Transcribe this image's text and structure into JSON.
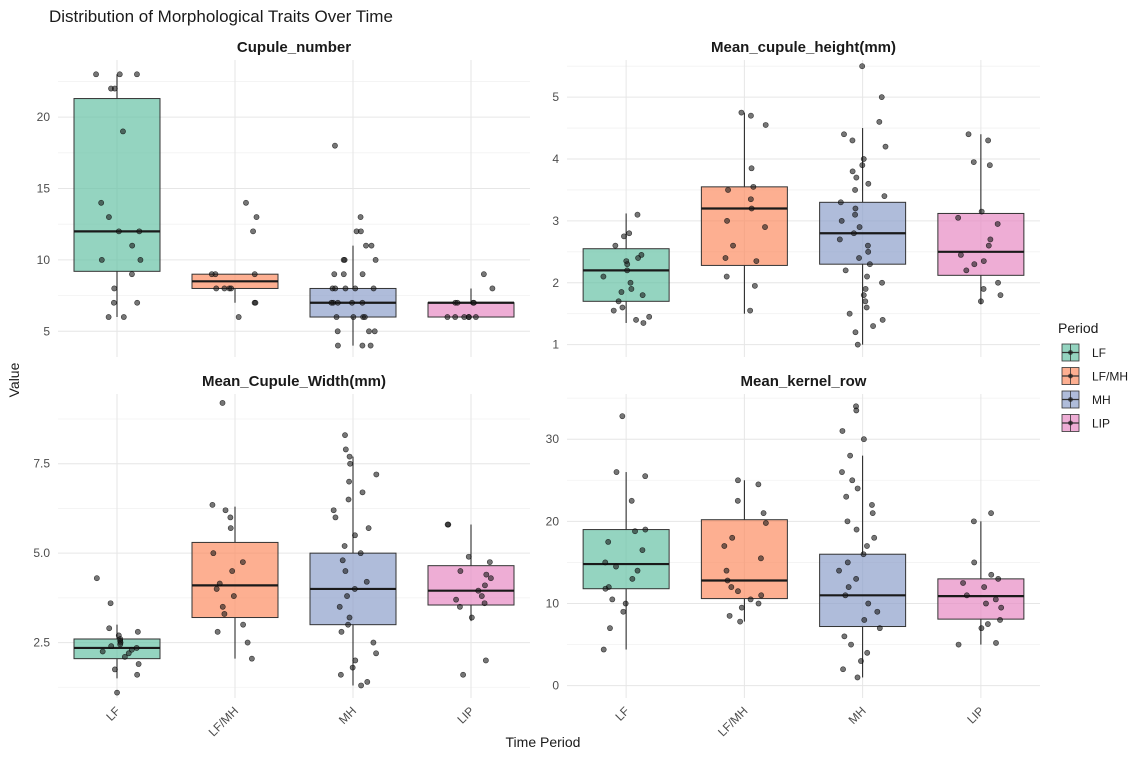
{
  "chart_data": {
    "type": "box",
    "title": "Distribution of Morphological Traits Over Time",
    "xlabel": "Time Period",
    "ylabel": "Value",
    "categories": [
      "LF",
      "LF/MH",
      "MH",
      "LIP"
    ],
    "legend": {
      "title": "Period",
      "placement": "right",
      "entries": [
        {
          "label": "LF",
          "color": "#66C2A5"
        },
        {
          "label": "LF/MH",
          "color": "#FC8D62"
        },
        {
          "label": "MH",
          "color": "#8DA0CB"
        },
        {
          "label": "LIP",
          "color": "#E78AC3"
        }
      ]
    },
    "grid": true,
    "panels": [
      {
        "title": "Cupule_number",
        "ylim": [
          3.2,
          24.0
        ],
        "yticks": [
          5,
          10,
          15,
          20
        ],
        "ytick_labels": [
          "5",
          "10",
          "15",
          "20"
        ],
        "boxes": [
          {
            "category": "LF",
            "whisker_low": 6,
            "q1": 9.2,
            "median": 12,
            "q3": 21.3,
            "whisker_high": 23,
            "points": [
              23,
              23,
              23,
              22,
              22,
              19,
              14,
              13,
              12,
              12,
              11,
              10,
              10,
              9,
              8,
              7,
              7,
              6,
              6
            ]
          },
          {
            "category": "LF/MH",
            "whisker_low": 7,
            "q1": 8,
            "median": 8.5,
            "q3": 9,
            "whisker_high": 9,
            "points": [
              14,
              13,
              12,
              9,
              9,
              9,
              8,
              8,
              8,
              8,
              7,
              7,
              6
            ]
          },
          {
            "category": "MH",
            "whisker_low": 4,
            "q1": 6,
            "median": 7,
            "q3": 8,
            "whisker_high": 11,
            "points": [
              18,
              13,
              12,
              12,
              11,
              11,
              10,
              10,
              10,
              9,
              9,
              9,
              8,
              8,
              8,
              8,
              8,
              7,
              7,
              7,
              7,
              7,
              6,
              6,
              6,
              6,
              5,
              5,
              5,
              4,
              4,
              4
            ]
          },
          {
            "category": "LIP",
            "whisker_low": 6,
            "q1": 6,
            "median": 7,
            "q3": 7,
            "whisker_high": 8,
            "points": [
              9,
              8,
              7,
              7,
              7,
              7,
              6,
              6,
              6,
              6,
              6,
              6
            ]
          }
        ]
      },
      {
        "title": "Mean_cupule_height(mm)",
        "ylim": [
          0.8,
          5.6
        ],
        "yticks": [
          1,
          2,
          3,
          4,
          5
        ],
        "ytick_labels": [
          "1",
          "2",
          "3",
          "4",
          "5"
        ],
        "boxes": [
          {
            "category": "LF",
            "whisker_low": 1.35,
            "q1": 1.7,
            "median": 2.2,
            "q3": 2.55,
            "whisker_high": 3.12,
            "points": [
              3.1,
              2.8,
              2.75,
              2.6,
              2.45,
              2.4,
              2.35,
              2.3,
              2.2,
              2.1,
              2.0,
              1.9,
              1.85,
              1.8,
              1.7,
              1.6,
              1.55,
              1.45,
              1.4,
              1.35
            ]
          },
          {
            "category": "LF/MH",
            "whisker_low": 1.5,
            "q1": 2.28,
            "median": 3.2,
            "q3": 3.55,
            "whisker_high": 4.75,
            "points": [
              4.75,
              4.7,
              4.55,
              3.85,
              3.55,
              3.5,
              3.35,
              3.2,
              3.0,
              2.9,
              2.6,
              2.4,
              2.35,
              2.1,
              1.95,
              1.55
            ]
          },
          {
            "category": "MH",
            "whisker_low": 1.0,
            "q1": 2.3,
            "median": 2.8,
            "q3": 3.3,
            "whisker_high": 4.5,
            "points": [
              5.5,
              5.0,
              4.6,
              4.4,
              4.3,
              4.2,
              4.0,
              3.9,
              3.8,
              3.7,
              3.6,
              3.5,
              3.4,
              3.3,
              3.2,
              3.1,
              3.0,
              2.9,
              2.8,
              2.7,
              2.6,
              2.5,
              2.4,
              2.3,
              2.2,
              2.1,
              2.0,
              1.9,
              1.8,
              1.7,
              1.6,
              1.5,
              1.4,
              1.3,
              1.2,
              1.0
            ]
          },
          {
            "category": "LIP",
            "whisker_low": 1.65,
            "q1": 2.12,
            "median": 2.5,
            "q3": 3.12,
            "whisker_high": 4.4,
            "points": [
              4.4,
              4.3,
              3.95,
              3.9,
              3.15,
              3.05,
              2.95,
              2.7,
              2.6,
              2.45,
              2.35,
              2.3,
              2.2,
              2.0,
              1.9,
              1.8,
              1.7
            ]
          }
        ]
      },
      {
        "title": "Mean_Cupule_Width(mm)",
        "ylim": [
          0.95,
          9.45
        ],
        "yticks": [
          2.5,
          5.0,
          7.5
        ],
        "ytick_labels": [
          "2.5",
          "5.0",
          "7.5"
        ],
        "boxes": [
          {
            "category": "LF",
            "whisker_low": 1.5,
            "q1": 2.05,
            "median": 2.35,
            "q3": 2.6,
            "whisker_high": 3.0,
            "points": [
              4.3,
              3.6,
              2.9,
              2.8,
              2.7,
              2.6,
              2.55,
              2.5,
              2.45,
              2.4,
              2.35,
              2.3,
              2.25,
              2.2,
              2.1,
              1.9,
              1.75,
              1.6,
              1.1
            ]
          },
          {
            "category": "LF/MH",
            "whisker_low": 2.05,
            "q1": 3.2,
            "median": 4.1,
            "q3": 5.3,
            "whisker_high": 6.3,
            "points": [
              9.2,
              6.35,
              6.2,
              6.0,
              5.7,
              5.0,
              4.75,
              4.5,
              4.15,
              4.0,
              3.8,
              3.5,
              3.3,
              3.0,
              2.8,
              2.5,
              2.05
            ]
          },
          {
            "category": "MH",
            "whisker_low": 1.3,
            "q1": 3.0,
            "median": 4.0,
            "q3": 5.0,
            "whisker_high": 7.7,
            "points": [
              8.3,
              7.9,
              7.7,
              7.5,
              7.2,
              7.0,
              6.7,
              6.5,
              6.2,
              6.0,
              5.7,
              5.5,
              5.2,
              5.0,
              4.8,
              4.5,
              4.2,
              4.0,
              3.8,
              3.5,
              3.2,
              3.0,
              2.8,
              2.5,
              2.2,
              2.0,
              1.8,
              1.6,
              1.4,
              1.3
            ]
          },
          {
            "category": "LIP",
            "whisker_low": 3.1,
            "q1": 3.55,
            "median": 3.95,
            "q3": 4.65,
            "whisker_high": 5.8,
            "points": [
              5.8,
              5.8,
              4.9,
              4.75,
              4.5,
              4.4,
              4.3,
              4.1,
              3.95,
              3.8,
              3.7,
              3.6,
              3.5,
              3.2,
              2.0,
              1.6
            ]
          }
        ]
      },
      {
        "title": "Mean_kernel_row",
        "ylim": [
          -1.5,
          35.5
        ],
        "yticks": [
          0,
          10,
          20,
          30
        ],
        "ytick_labels": [
          "0",
          "10",
          "20",
          "30"
        ],
        "boxes": [
          {
            "category": "LF",
            "whisker_low": 4.4,
            "q1": 11.8,
            "median": 14.8,
            "q3": 19.0,
            "whisker_high": 26.0,
            "points": [
              32.8,
              26.0,
              25.5,
              22.5,
              19.0,
              18.8,
              17.5,
              16.5,
              15.0,
              14.5,
              14.0,
              13.0,
              12.0,
              11.8,
              10.5,
              10.0,
              9.0,
              7.0,
              4.4
            ]
          },
          {
            "category": "LF/MH",
            "whisker_low": 7.8,
            "q1": 10.6,
            "median": 12.8,
            "q3": 20.2,
            "whisker_high": 25.0,
            "points": [
              25.0,
              24.5,
              22.5,
              21.0,
              19.8,
              18.0,
              17.0,
              15.5,
              14.0,
              12.8,
              12.0,
              11.5,
              11.0,
              10.5,
              10.0,
              9.5,
              8.5,
              7.8
            ]
          },
          {
            "category": "MH",
            "whisker_low": 1.0,
            "q1": 7.2,
            "median": 11.0,
            "q3": 16.0,
            "whisker_high": 28.0,
            "points": [
              34.0,
              33.5,
              31.0,
              30.0,
              28.0,
              26.0,
              25.0,
              24.0,
              23.0,
              22.0,
              21.0,
              20.0,
              19.0,
              18.0,
              17.0,
              16.0,
              15.0,
              14.0,
              13.0,
              12.0,
              11.0,
              10.0,
              9.0,
              8.0,
              7.0,
              6.0,
              5.0,
              4.0,
              3.0,
              2.0,
              1.0
            ]
          },
          {
            "category": "LIP",
            "whisker_low": 5.0,
            "q1": 8.1,
            "median": 10.9,
            "q3": 13.0,
            "whisker_high": 20.0,
            "points": [
              21.0,
              20.0,
              15.0,
              13.5,
              13.0,
              12.5,
              12.0,
              11.0,
              10.5,
              10.0,
              9.5,
              8.0,
              7.5,
              7.0,
              5.2,
              5.0
            ]
          }
        ]
      }
    ]
  }
}
